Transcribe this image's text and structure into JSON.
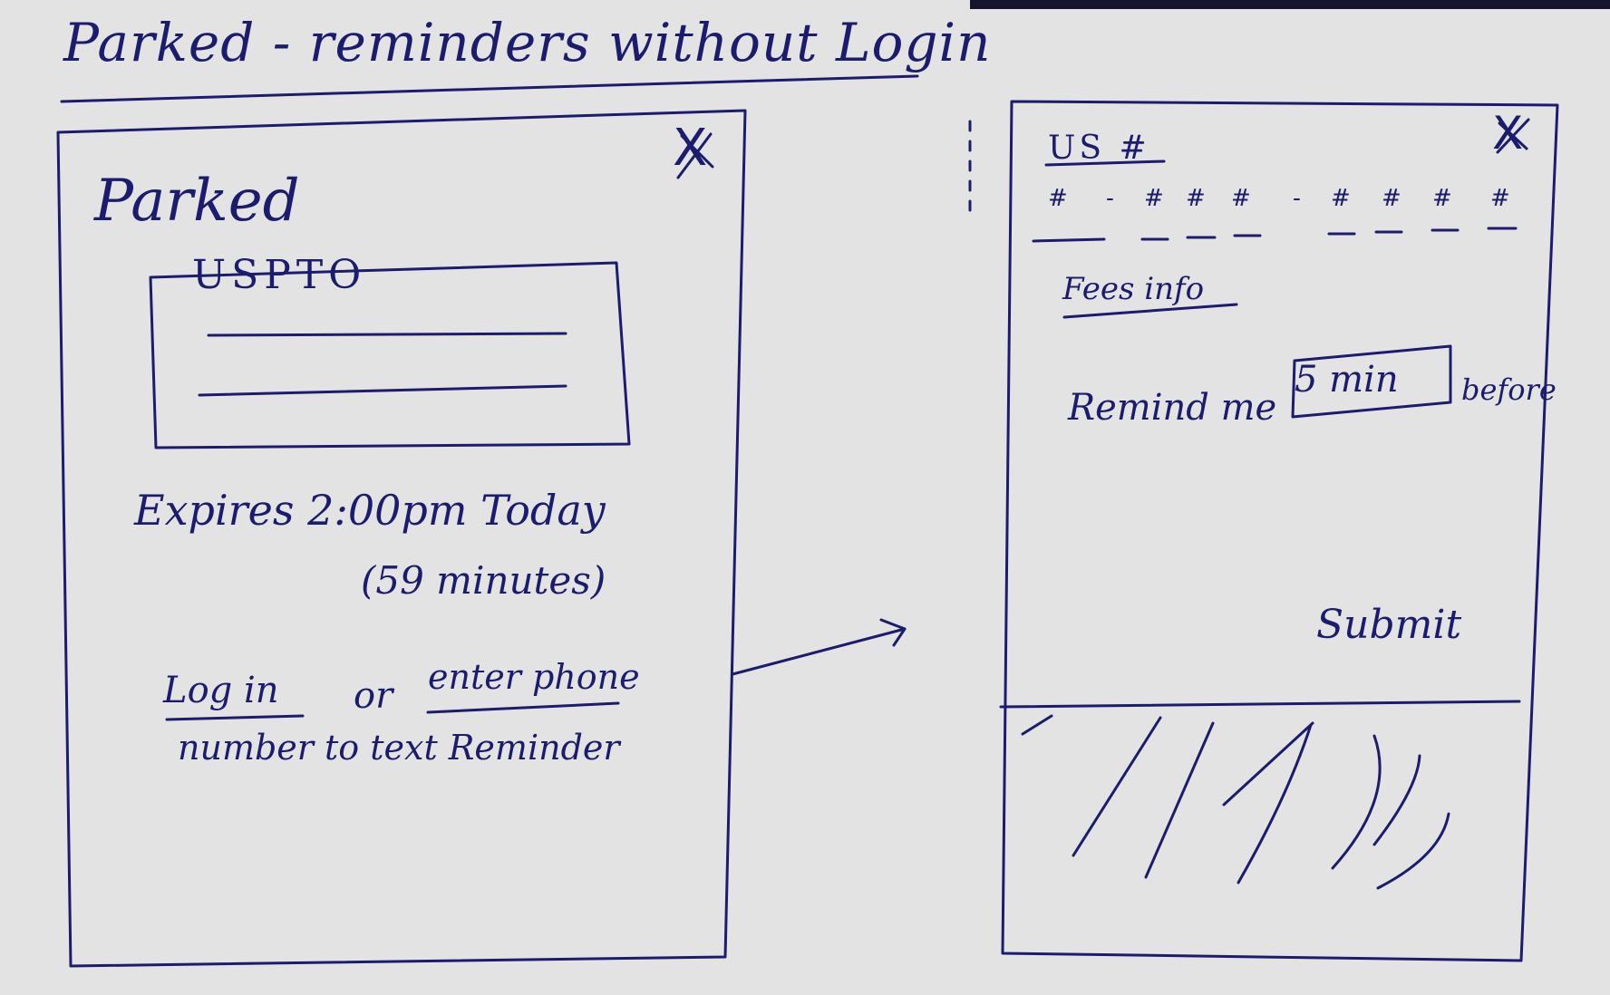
{
  "page": {
    "title": "Parked - reminders without Login"
  },
  "left_modal": {
    "close_glyph": "X",
    "title": "Parked",
    "agency_label": "USPTO",
    "expiry": "Expires 2:00pm Today",
    "remaining": "(59 minutes)",
    "login_link": "Log in",
    "or_text": "or",
    "enter_phone_link": "enter phone",
    "text_rest": "number to text Reminder"
  },
  "right_modal": {
    "close_glyph": "X",
    "carrier_label": "US #",
    "phone_keys": [
      "#",
      "-",
      "#",
      "#",
      "#",
      "-",
      "#",
      "#",
      "#",
      "#"
    ],
    "fees_link": "Fees info",
    "remind_label": "Remind me",
    "minutes_value": "5 min",
    "before_label": "before",
    "submit_label": "Submit"
  }
}
